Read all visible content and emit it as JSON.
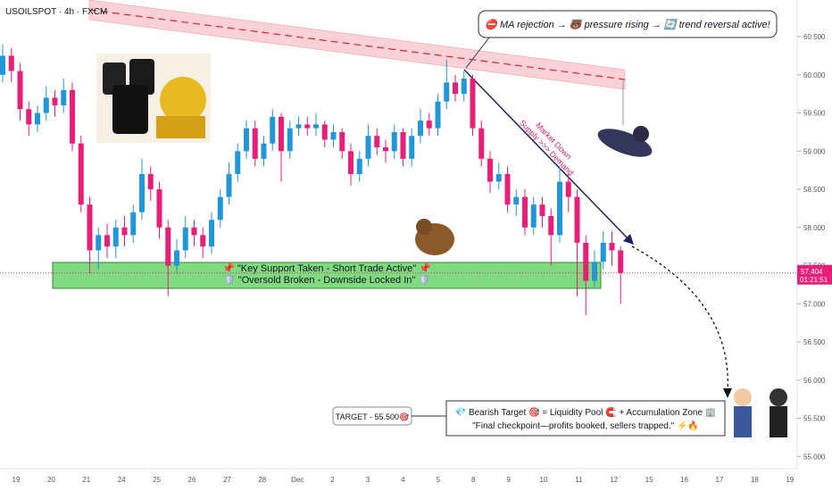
{
  "chart_data": {
    "type": "candlestick",
    "title": "USOILSPOT · 4h · FXCM",
    "up_color": "#2196d8",
    "down_color": "#e91e78",
    "categories": [
      "19",
      "20",
      "21",
      "24",
      "25",
      "26",
      "27",
      "28",
      "Dec",
      "2",
      "3",
      "4",
      "5",
      "8",
      "9",
      "10",
      "11",
      "12",
      "15",
      "16",
      "17",
      "18",
      "19"
    ],
    "open": [
      60.0,
      60.25,
      60.05,
      59.55,
      59.35,
      59.5,
      59.7,
      59.6,
      59.8,
      59.1,
      58.3,
      57.7,
      57.9,
      57.75,
      58.0,
      57.9,
      58.2,
      58.7,
      58.5,
      58.0,
      57.5,
      57.7,
      58.0,
      57.9,
      57.75,
      58.1,
      58.4,
      58.7,
      59.0,
      59.3,
      58.9,
      59.1,
      59.45,
      59.0,
      59.3,
      59.35,
      59.3,
      59.35,
      59.15,
      59.25,
      59.0,
      58.7,
      58.9,
      59.2,
      59.05,
      59.0,
      59.25,
      58.9,
      59.2,
      59.4,
      59.3,
      59.65,
      59.9,
      59.75,
      59.95,
      59.3,
      58.9,
      58.6,
      58.7,
      58.3,
      58.4,
      58.0,
      58.3,
      58.15,
      57.9,
      58.6,
      58.4,
      57.8,
      57.3,
      57.55,
      57.8,
      57.7
    ],
    "high": [
      60.4,
      60.35,
      60.15,
      59.65,
      59.6,
      59.85,
      59.8,
      59.95,
      59.9,
      59.2,
      58.4,
      58.0,
      58.05,
      58.1,
      58.15,
      58.3,
      58.9,
      58.8,
      58.6,
      58.1,
      57.85,
      58.15,
      58.1,
      58.0,
      58.2,
      58.5,
      58.85,
      59.1,
      59.4,
      59.4,
      59.2,
      59.55,
      59.5,
      59.4,
      59.45,
      59.45,
      59.5,
      59.4,
      59.35,
      59.3,
      59.1,
      59.0,
      59.35,
      59.3,
      59.15,
      59.35,
      59.3,
      59.3,
      59.55,
      59.5,
      59.75,
      60.2,
      60.0,
      60.05,
      60.0,
      59.4,
      59.0,
      58.85,
      58.8,
      58.5,
      58.5,
      58.4,
      58.4,
      58.25,
      58.8,
      58.7,
      58.5,
      57.9,
      57.7,
      57.95,
      57.95,
      57.75
    ],
    "low": [
      59.9,
      59.9,
      59.4,
      59.2,
      59.25,
      59.4,
      59.45,
      59.5,
      59.0,
      58.2,
      57.4,
      57.45,
      57.6,
      57.6,
      57.75,
      57.8,
      58.1,
      58.35,
      57.85,
      57.1,
      57.4,
      57.6,
      57.75,
      57.6,
      57.65,
      58.0,
      58.3,
      58.6,
      58.9,
      58.8,
      58.8,
      59.0,
      58.6,
      58.9,
      59.2,
      59.2,
      59.2,
      59.05,
      59.05,
      58.9,
      58.55,
      58.6,
      58.8,
      58.95,
      58.85,
      58.9,
      58.8,
      58.8,
      59.1,
      59.2,
      59.2,
      59.55,
      59.65,
      59.65,
      59.2,
      58.8,
      58.45,
      58.5,
      58.2,
      58.15,
      57.9,
      57.9,
      58.0,
      57.5,
      57.8,
      58.2,
      57.1,
      56.85,
      57.2,
      57.45,
      57.5,
      57.0
    ],
    "close": [
      60.25,
      60.05,
      59.55,
      59.35,
      59.5,
      59.7,
      59.6,
      59.8,
      59.1,
      58.3,
      57.7,
      57.9,
      57.75,
      58.0,
      57.9,
      58.2,
      58.7,
      58.5,
      58.0,
      57.5,
      57.7,
      58.0,
      57.9,
      57.75,
      58.1,
      58.4,
      58.7,
      59.0,
      59.3,
      58.9,
      59.1,
      59.45,
      59.0,
      59.3,
      59.35,
      59.3,
      59.35,
      59.15,
      59.25,
      59.0,
      58.7,
      58.9,
      59.2,
      59.05,
      59.0,
      59.25,
      58.9,
      59.2,
      59.4,
      59.3,
      59.65,
      59.9,
      59.75,
      59.95,
      59.3,
      58.9,
      58.6,
      58.7,
      58.3,
      58.4,
      58.0,
      58.3,
      58.15,
      57.9,
      58.6,
      58.4,
      57.8,
      57.3,
      57.55,
      57.8,
      57.7,
      57.404
    ],
    "countdown": "01:21:51",
    "ylim": [
      54.84,
      60.98
    ],
    "yticks": [
      {
        "value": 60.5,
        "label": "60.500"
      },
      {
        "value": 60.0,
        "label": "60.000"
      },
      {
        "value": 59.5,
        "label": "59.500"
      },
      {
        "value": 59.0,
        "label": "59.000"
      },
      {
        "value": 58.5,
        "label": "58.500"
      },
      {
        "value": 58.0,
        "label": "58.000"
      },
      {
        "value": 57.5,
        "label": "57.500"
      },
      {
        "value": 57.0,
        "label": "57.000"
      },
      {
        "value": 56.5,
        "label": "56.500"
      },
      {
        "value": 56.0,
        "label": "56.000"
      },
      {
        "value": 55.5,
        "label": "55.500"
      },
      {
        "value": 55.0,
        "label": "55.000"
      }
    ],
    "annotations": {
      "callout": "⛔ MA rejection → 🐻 pressure rising → 🔄 trend reversal active!",
      "support_zone": [
        "📌 \"Key Support Taken - Short Trade Active\" 📌",
        "🛡️ \"Oversold Broken - Downside Locked In\" 🛡️"
      ],
      "trend_note": [
        "Market Down",
        "Supply >>> Demand"
      ],
      "target_label": "TARGET - 55.500🎯",
      "target_box": [
        "💎 Bearish Target 🎯 = Liquidity Pool 🧲 + Accumulation Zone 🏢",
        "\"Final checkpoint—profits booked, sellers trapped.\" ⚡🔥"
      ]
    }
  }
}
